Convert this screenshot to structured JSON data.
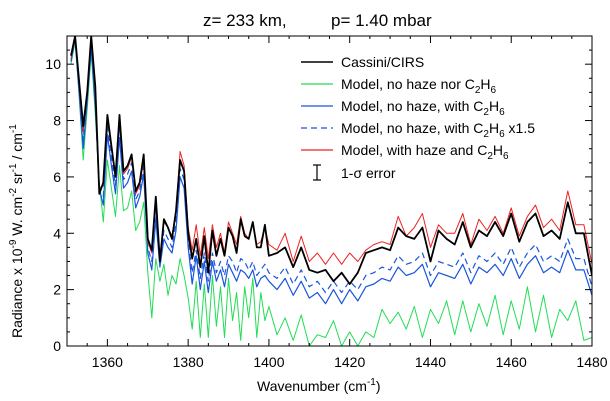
{
  "chart_data": {
    "type": "line",
    "title": {
      "z_part": "z= 233 km,",
      "p_part": "p=  1.40 mbar"
    },
    "xlabel": {
      "base": "Wavenumber (cm",
      "sup": "-1",
      "end": ")"
    },
    "ylabel": {
      "prefix": "Radiance x 10",
      "exp1": "-9",
      "mid": " W. cm",
      "exp2": "-2",
      "mid2": " sr",
      "exp3": "-1",
      "mid3": " / cm",
      "exp4": "-1"
    },
    "xlim": [
      1350,
      1480
    ],
    "ylim": [
      0,
      11
    ],
    "xticks": [
      1360,
      1380,
      1400,
      1420,
      1440,
      1460,
      1480
    ],
    "yticks": [
      0,
      2,
      4,
      6,
      8,
      10
    ],
    "grid": false,
    "legend_position": "top-right",
    "legend": [
      {
        "label": "Cassini/CIRS",
        "color": "#000000",
        "style": "solid"
      },
      {
        "label": "Model, no haze nor C",
        "sub": "2",
        "label2": "H",
        "sub2": "6",
        "color": "#22dd55",
        "style": "solid"
      },
      {
        "label": "Model, no haze, with C",
        "sub": "2",
        "label2": "H",
        "sub2": "6",
        "color": "#1a55dd",
        "style": "solid"
      },
      {
        "label": "Model, no haze, with C",
        "sub": "2",
        "label2": "H",
        "sub2": "6",
        "tail": " x1.5",
        "color": "#1a55dd",
        "style": "dashed"
      },
      {
        "label": "Model, with haze and C",
        "sub": "2",
        "label2": "H",
        "sub2": "6",
        "color": "#ee2222",
        "style": "solid"
      },
      {
        "label": "1-σ error",
        "color": "#000000",
        "style": "errorbar"
      }
    ],
    "series": [
      {
        "name": "Cassini/CIRS",
        "color": "#000000",
        "style": "solid",
        "width": 1.8,
        "x": [
          1351,
          1352,
          1353,
          1354,
          1355,
          1356,
          1357,
          1358,
          1359,
          1360,
          1361,
          1362,
          1363,
          1364,
          1365,
          1366,
          1367,
          1368,
          1369,
          1370,
          1371,
          1372,
          1373,
          1374,
          1375,
          1376,
          1377,
          1378,
          1379,
          1380,
          1381,
          1382,
          1383,
          1384,
          1385,
          1386,
          1387,
          1388,
          1389,
          1390,
          1391,
          1392,
          1393,
          1394,
          1395,
          1396,
          1397,
          1398,
          1399,
          1400,
          1402,
          1404,
          1406,
          1408,
          1410,
          1412,
          1414,
          1416,
          1418,
          1420,
          1422,
          1424,
          1426,
          1428,
          1430,
          1432,
          1434,
          1436,
          1438,
          1440,
          1442,
          1444,
          1446,
          1448,
          1450,
          1452,
          1454,
          1456,
          1458,
          1460,
          1462,
          1464,
          1466,
          1468,
          1470,
          1472,
          1474,
          1476,
          1478,
          1480
        ],
        "y": [
          10.3,
          11.0,
          9.4,
          7.8,
          9.0,
          11.0,
          9.2,
          5.4,
          5.8,
          8.2,
          7.1,
          6.0,
          8.2,
          6.2,
          6.4,
          6.8,
          5.5,
          5.8,
          6.8,
          3.8,
          3.4,
          5.3,
          3.0,
          4.5,
          4.2,
          3.8,
          4.8,
          6.6,
          6.2,
          4.0,
          3.1,
          3.8,
          2.8,
          3.9,
          2.6,
          4.1,
          3.2,
          3.8,
          3.2,
          4.2,
          3.9,
          3.3,
          4.5,
          3.9,
          3.8,
          4.4,
          3.5,
          3.5,
          4.3,
          3.2,
          3.3,
          3.5,
          2.8,
          3.5,
          2.7,
          2.6,
          2.7,
          2.3,
          2.6,
          2.2,
          2.6,
          3.3,
          3.4,
          3.5,
          3.4,
          4.2,
          3.9,
          3.8,
          4.2,
          3.0,
          4.1,
          3.8,
          3.6,
          4.4,
          3.5,
          4.1,
          3.9,
          4.4,
          3.9,
          4.7,
          3.7,
          4.4,
          4.7,
          3.9,
          4.1,
          3.8,
          5.1,
          4.0,
          4.0,
          2.5
        ]
      },
      {
        "name": "Model, no haze nor C2H6",
        "color": "#22dd55",
        "style": "solid",
        "width": 1,
        "x": [
          1351,
          1352,
          1353,
          1354,
          1355,
          1356,
          1357,
          1358,
          1359,
          1360,
          1361,
          1362,
          1363,
          1364,
          1365,
          1366,
          1367,
          1368,
          1369,
          1370,
          1371,
          1372,
          1373,
          1374,
          1375,
          1376,
          1377,
          1378,
          1379,
          1380,
          1381,
          1382,
          1383,
          1384,
          1385,
          1386,
          1387,
          1388,
          1389,
          1390,
          1391,
          1392,
          1393,
          1394,
          1395,
          1396,
          1397,
          1398,
          1399,
          1400,
          1402,
          1404,
          1406,
          1408,
          1410,
          1412,
          1414,
          1416,
          1418,
          1420,
          1422,
          1424,
          1426,
          1428,
          1430,
          1432,
          1434,
          1436,
          1438,
          1440,
          1442,
          1444,
          1446,
          1448,
          1450,
          1452,
          1454,
          1456,
          1458,
          1460,
          1462,
          1464,
          1466,
          1468,
          1470,
          1472,
          1474,
          1476,
          1478,
          1480
        ],
        "y": [
          10.0,
          10.8,
          8.9,
          6.6,
          8.4,
          10.4,
          8.2,
          5.8,
          4.4,
          6.6,
          5.6,
          4.6,
          6.4,
          4.8,
          4.9,
          5.5,
          4.1,
          4.4,
          5.1,
          2.6,
          1.0,
          3.1,
          2.3,
          2.9,
          1.8,
          2.5,
          2.2,
          3.1,
          2.5,
          1.7,
          0.6,
          2.3,
          0.3,
          2.2,
          0.3,
          2.5,
          0.7,
          2.1,
          0.3,
          2.4,
          0.9,
          1.9,
          0.2,
          2.1,
          1.0,
          2.4,
          0.3,
          1.9,
          0.9,
          1.4,
          0.4,
          1.0,
          0.2,
          1.1,
          0.0,
          0.4,
          0.3,
          0.9,
          0.0,
          0.5,
          0.0,
          0.5,
          0.3,
          1.3,
          0.8,
          1.2,
          0.6,
          1.4,
          0.3,
          1.3,
          0.8,
          1.6,
          0.4,
          1.6,
          0.5,
          1.5,
          0.7,
          1.8,
          0.4,
          1.6,
          0.6,
          2.1,
          0.5,
          1.8,
          0.3,
          1.3,
          0.9,
          1.6,
          0.2,
          0.3
        ]
      },
      {
        "name": "Model, no haze, with C2H6",
        "color": "#1a55dd",
        "style": "solid",
        "width": 1.2,
        "x": [
          1351,
          1352,
          1353,
          1354,
          1355,
          1356,
          1357,
          1358,
          1359,
          1360,
          1361,
          1362,
          1363,
          1364,
          1365,
          1366,
          1367,
          1368,
          1369,
          1370,
          1371,
          1372,
          1373,
          1374,
          1375,
          1376,
          1377,
          1378,
          1379,
          1380,
          1381,
          1382,
          1383,
          1384,
          1385,
          1386,
          1387,
          1388,
          1389,
          1390,
          1391,
          1392,
          1393,
          1394,
          1395,
          1396,
          1397,
          1398,
          1399,
          1400,
          1402,
          1404,
          1406,
          1408,
          1410,
          1412,
          1414,
          1416,
          1418,
          1420,
          1422,
          1424,
          1426,
          1428,
          1430,
          1432,
          1434,
          1436,
          1438,
          1440,
          1442,
          1444,
          1446,
          1448,
          1450,
          1452,
          1454,
          1456,
          1458,
          1460,
          1462,
          1464,
          1466,
          1468,
          1470,
          1472,
          1474,
          1476,
          1478,
          1480
        ],
        "y": [
          10.1,
          10.9,
          9.0,
          7.0,
          8.7,
          10.6,
          8.5,
          5.6,
          5.0,
          7.5,
          6.4,
          5.4,
          7.4,
          5.6,
          5.8,
          6.2,
          4.9,
          5.3,
          6.1,
          3.3,
          2.7,
          4.5,
          2.8,
          3.8,
          3.5,
          3.3,
          4.1,
          6.0,
          5.6,
          3.5,
          2.2,
          3.2,
          2.0,
          3.0,
          1.9,
          3.0,
          2.3,
          2.7,
          2.1,
          2.9,
          2.6,
          2.3,
          2.7,
          2.6,
          2.4,
          2.7,
          2.1,
          2.4,
          2.5,
          2.3,
          2.0,
          2.4,
          1.8,
          2.3,
          1.7,
          1.9,
          1.5,
          2.0,
          1.5,
          2.0,
          1.6,
          2.1,
          2.2,
          2.4,
          2.3,
          2.8,
          2.5,
          2.6,
          2.9,
          2.1,
          2.6,
          2.5,
          2.4,
          2.9,
          2.2,
          2.8,
          2.6,
          2.9,
          2.5,
          3.1,
          2.4,
          2.9,
          3.2,
          2.6,
          2.8,
          2.6,
          3.4,
          2.7,
          2.7,
          1.8
        ]
      },
      {
        "name": "Model, no haze, with C2H6 x1.5",
        "color": "#1a55dd",
        "style": "dashed",
        "width": 1.2,
        "x": [
          1351,
          1352,
          1353,
          1354,
          1355,
          1356,
          1357,
          1358,
          1359,
          1360,
          1361,
          1362,
          1363,
          1364,
          1365,
          1366,
          1367,
          1368,
          1369,
          1370,
          1371,
          1372,
          1373,
          1374,
          1375,
          1376,
          1377,
          1378,
          1379,
          1380,
          1381,
          1382,
          1383,
          1384,
          1385,
          1386,
          1387,
          1388,
          1389,
          1390,
          1391,
          1392,
          1393,
          1394,
          1395,
          1396,
          1397,
          1398,
          1399,
          1400,
          1402,
          1404,
          1406,
          1408,
          1410,
          1412,
          1414,
          1416,
          1418,
          1420,
          1422,
          1424,
          1426,
          1428,
          1430,
          1432,
          1434,
          1436,
          1438,
          1440,
          1442,
          1444,
          1446,
          1448,
          1450,
          1452,
          1454,
          1456,
          1458,
          1460,
          1462,
          1464,
          1466,
          1468,
          1470,
          1472,
          1474,
          1476,
          1478,
          1480
        ],
        "y": [
          10.1,
          10.9,
          9.1,
          7.3,
          8.8,
          10.8,
          8.8,
          5.5,
          5.3,
          7.8,
          6.7,
          5.7,
          7.8,
          5.9,
          6.1,
          6.5,
          5.2,
          5.5,
          6.4,
          3.5,
          3.0,
          4.9,
          2.9,
          4.1,
          3.8,
          3.5,
          4.4,
          6.3,
          5.9,
          3.7,
          2.6,
          3.4,
          2.4,
          3.3,
          2.3,
          3.3,
          2.6,
          3.0,
          2.5,
          3.2,
          3.0,
          2.6,
          3.1,
          3.0,
          2.7,
          3.0,
          2.5,
          2.7,
          2.9,
          2.6,
          2.4,
          2.8,
          2.2,
          2.7,
          2.1,
          2.3,
          1.9,
          2.3,
          1.9,
          2.3,
          2.0,
          2.5,
          2.6,
          2.8,
          2.7,
          3.2,
          2.9,
          3.0,
          3.3,
          2.5,
          3.0,
          2.9,
          2.8,
          3.3,
          2.6,
          3.2,
          3.0,
          3.3,
          2.9,
          3.5,
          2.8,
          3.3,
          3.6,
          3.0,
          3.2,
          3.0,
          3.8,
          3.1,
          3.1,
          2.1
        ]
      },
      {
        "name": "Model, with haze and C2H6",
        "color": "#ee2222",
        "style": "solid",
        "width": 1,
        "x": [
          1351,
          1352,
          1353,
          1354,
          1355,
          1356,
          1357,
          1358,
          1359,
          1360,
          1361,
          1362,
          1363,
          1364,
          1365,
          1366,
          1367,
          1368,
          1369,
          1370,
          1371,
          1372,
          1373,
          1374,
          1375,
          1376,
          1377,
          1378,
          1379,
          1380,
          1381,
          1382,
          1383,
          1384,
          1385,
          1386,
          1387,
          1388,
          1389,
          1390,
          1391,
          1392,
          1393,
          1394,
          1395,
          1396,
          1397,
          1398,
          1399,
          1400,
          1402,
          1404,
          1406,
          1408,
          1410,
          1412,
          1414,
          1416,
          1418,
          1420,
          1422,
          1424,
          1426,
          1428,
          1430,
          1432,
          1434,
          1436,
          1438,
          1440,
          1442,
          1444,
          1446,
          1448,
          1450,
          1452,
          1454,
          1456,
          1458,
          1460,
          1462,
          1464,
          1466,
          1468,
          1470,
          1472,
          1474,
          1476,
          1478,
          1480
        ],
        "y": [
          10.2,
          11.0,
          9.3,
          7.6,
          9.0,
          10.9,
          9.0,
          5.6,
          5.7,
          8.1,
          7.0,
          6.0,
          8.1,
          6.1,
          6.3,
          6.7,
          5.4,
          5.7,
          6.6,
          3.7,
          3.3,
          5.2,
          3.1,
          4.4,
          4.2,
          3.9,
          4.8,
          6.9,
          6.4,
          4.2,
          3.4,
          4.3,
          3.2,
          4.2,
          3.1,
          4.3,
          3.5,
          4.0,
          3.3,
          4.4,
          4.0,
          3.6,
          4.6,
          4.0,
          3.8,
          4.4,
          3.6,
          3.7,
          4.2,
          3.6,
          3.4,
          4.0,
          3.0,
          3.9,
          3.0,
          3.3,
          2.9,
          3.3,
          2.9,
          3.3,
          3.0,
          3.4,
          3.6,
          3.7,
          3.6,
          4.6,
          3.9,
          4.2,
          4.7,
          3.5,
          4.3,
          4.0,
          4.0,
          4.7,
          3.6,
          4.5,
          4.1,
          4.6,
          4.0,
          4.9,
          3.9,
          4.6,
          5.0,
          4.2,
          4.5,
          4.1,
          5.5,
          4.3,
          4.3,
          2.9
        ]
      }
    ]
  }
}
